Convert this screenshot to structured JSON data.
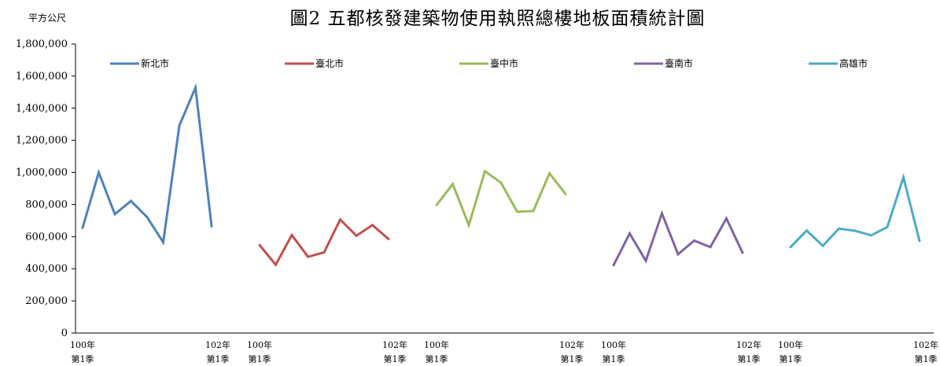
{
  "chart_data": {
    "type": "line",
    "title": "圖2 五都核發建築物使用執照總樓地板面積統計圖",
    "ylabel": "平方公尺",
    "ylim": [
      0,
      1800000
    ],
    "y_ticks": [
      "0",
      "200,000",
      "400,000",
      "600,000",
      "800,000",
      "1,000,000",
      "1,200,000",
      "1,400,000",
      "1,600,000",
      "1,800,000"
    ],
    "grid": false,
    "legend": "top",
    "x_tick_labels": [
      {
        "year": "100年",
        "quarter": "第1季"
      },
      {
        "year": "102年",
        "quarter": "第1季"
      }
    ],
    "series": [
      {
        "name": "新北市",
        "color": "#4F81BD",
        "values": [
          655000,
          1000000,
          740000,
          822000,
          722000,
          565000,
          1292000,
          1528000,
          664000
        ]
      },
      {
        "name": "臺北市",
        "color": "#C0504D",
        "values": [
          548000,
          425000,
          610000,
          475000,
          502000,
          707000,
          606000,
          672000,
          585000
        ]
      },
      {
        "name": "臺中市",
        "color": "#9BBB59",
        "values": [
          797000,
          928000,
          672000,
          1008000,
          935000,
          755000,
          760000,
          994000,
          866000
        ]
      },
      {
        "name": "臺南市",
        "color": "#8064A2",
        "values": [
          422000,
          620000,
          450000,
          745000,
          490000,
          575000,
          535000,
          713000,
          500000
        ]
      },
      {
        "name": "高雄市",
        "color": "#4BACC6",
        "values": [
          535000,
          638000,
          543000,
          650000,
          637000,
          608000,
          660000,
          970000,
          573000
        ]
      }
    ]
  }
}
